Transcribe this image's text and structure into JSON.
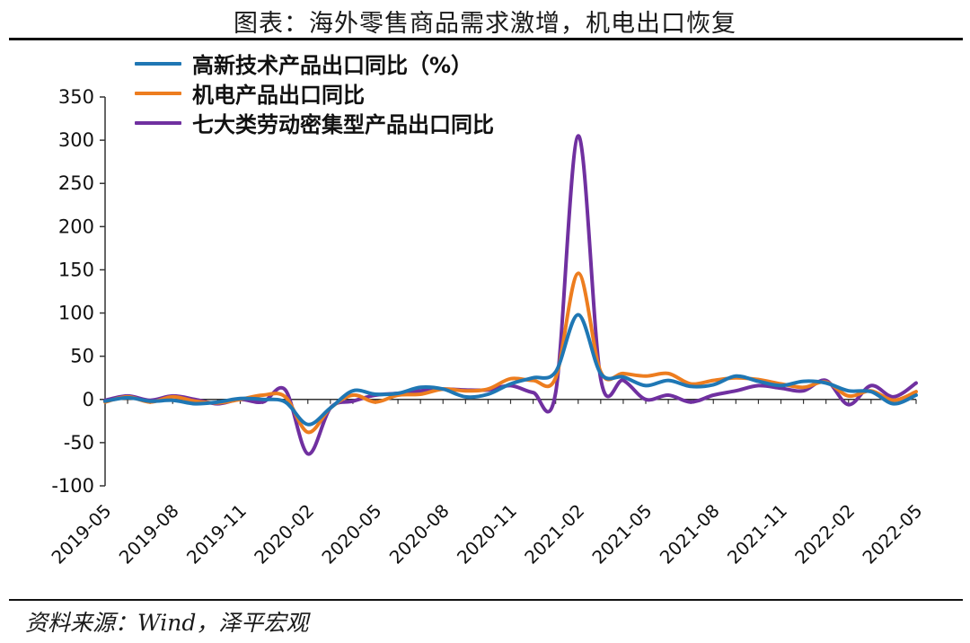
{
  "title": "图表：海外零售商品需求激增，机电出口恢复",
  "source": "资料来源：Wind，泽平宏观",
  "colors": {
    "blue": "#1f77b4",
    "orange": "#ed7d1f",
    "purple": "#7030a0"
  },
  "chart_data": {
    "type": "line",
    "ylim": [
      -100,
      350
    ],
    "yticks": [
      350,
      300,
      250,
      200,
      150,
      100,
      50,
      0,
      -50,
      -100
    ],
    "ytick_labels": [
      "350",
      "300",
      "250",
      "200",
      "150",
      "100",
      "50",
      "0",
      "-50",
      "-100"
    ],
    "xtick_labels": [
      "2019-05",
      "2019-08",
      "2019-11",
      "2020-02",
      "2020-05",
      "2020-08",
      "2020-11",
      "2021-02",
      "2021-05",
      "2021-08",
      "2021-11",
      "2022-02",
      "2022-05"
    ],
    "x": [
      "2019-05",
      "2019-06",
      "2019-07",
      "2019-08",
      "2019-09",
      "2019-10",
      "2019-11",
      "2019-12",
      "2020-01",
      "2020-02",
      "2020-03",
      "2020-04",
      "2020-05",
      "2020-06",
      "2020-07",
      "2020-08",
      "2020-09",
      "2020-10",
      "2020-11",
      "2020-12",
      "2021-01",
      "2021-02",
      "2021-03",
      "2021-04",
      "2021-05",
      "2021-06",
      "2021-07",
      "2021-08",
      "2021-09",
      "2021-10",
      "2021-11",
      "2021-12",
      "2022-01",
      "2022-02",
      "2022-03",
      "2022-04",
      "2022-05"
    ],
    "legend_position": "top-left",
    "series": [
      {
        "name": "高新技术产品出口同比（%）",
        "color": "#1f77b4",
        "values": [
          -2,
          2,
          -2,
          -1,
          -5,
          -3,
          1,
          0,
          -3,
          -29,
          -10,
          10,
          6,
          7,
          14,
          12,
          3,
          6,
          18,
          25,
          32,
          98,
          30,
          26,
          16,
          22,
          15,
          17,
          27,
          21,
          16,
          21,
          19,
          10,
          9,
          -5,
          5
        ]
      },
      {
        "name": "机电产品出口同比",
        "color": "#ed7d1f",
        "values": [
          -3,
          3,
          -3,
          3,
          -2,
          -4,
          0,
          5,
          3,
          -38,
          -10,
          5,
          -3,
          5,
          6,
          12,
          10,
          12,
          24,
          22,
          25,
          146,
          32,
          30,
          27,
          30,
          18,
          22,
          25,
          23,
          18,
          14,
          20,
          4,
          10,
          -1,
          9
        ]
      },
      {
        "name": "七大类劳动密集型产品出口同比",
        "color": "#7030a0",
        "values": [
          -1,
          4,
          -1,
          4,
          0,
          -5,
          0,
          -3,
          11,
          -63,
          -10,
          -2,
          5,
          7,
          10,
          12,
          11,
          11,
          16,
          8,
          8,
          305,
          24,
          22,
          0,
          5,
          -3,
          5,
          10,
          16,
          13,
          10,
          22,
          -6,
          16,
          3,
          19
        ]
      }
    ]
  }
}
